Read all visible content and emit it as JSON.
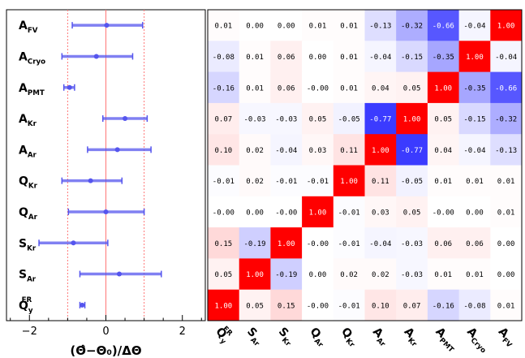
{
  "chart_data": [
    {
      "type": "scatter",
      "subtype": "pull-plot",
      "xlabel": "(Θ̂−Θ₀)/ΔΘ",
      "xlim": [
        -2.6,
        2.6
      ],
      "xticks": [
        -2,
        0,
        2
      ],
      "reference_lines": [
        {
          "x": 0,
          "style": "solid",
          "color": "#ff7777"
        },
        {
          "x": -1,
          "style": "dotted",
          "color": "#ff7777"
        },
        {
          "x": 1,
          "style": "dotted",
          "color": "#ff7777"
        }
      ],
      "marker_color": "#5555ee",
      "parameters": [
        {
          "base": "A",
          "sub": "FV",
          "sup": "",
          "center": 0.02,
          "low": -0.88,
          "high": 0.96
        },
        {
          "base": "A",
          "sub": "Cryo",
          "sup": "",
          "center": -0.25,
          "low": -1.15,
          "high": 0.7
        },
        {
          "base": "A",
          "sub": "PMT",
          "sup": "",
          "center": -0.95,
          "low": -1.1,
          "high": -0.82
        },
        {
          "base": "A",
          "sub": "Kr",
          "sup": "",
          "center": 0.5,
          "low": -0.08,
          "high": 1.08
        },
        {
          "base": "A",
          "sub": "Ar",
          "sup": "",
          "center": 0.3,
          "low": -0.48,
          "high": 1.18
        },
        {
          "base": "Q",
          "sub": "Kr",
          "sup": "",
          "center": -0.4,
          "low": -1.15,
          "high": 0.42
        },
        {
          "base": "Q",
          "sub": "Ar",
          "sup": "",
          "center": 0.0,
          "low": -0.98,
          "high": 1.0
        },
        {
          "base": "S",
          "sub": "Kr",
          "sup": "",
          "center": -0.85,
          "low": -1.75,
          "high": 0.05
        },
        {
          "base": "S",
          "sub": "Ar",
          "sup": "",
          "center": 0.35,
          "low": -0.68,
          "high": 1.45
        },
        {
          "base": "Q",
          "sub": "y",
          "sup": "ER",
          "center": -0.62,
          "low": -0.68,
          "high": -0.55
        }
      ]
    },
    {
      "type": "heatmap",
      "subtype": "correlation-matrix",
      "color_positive": "#ff0000",
      "color_negative": "#0000ff",
      "columns": [
        {
          "base": "Q",
          "sub": "y",
          "sup": "ER"
        },
        {
          "base": "S",
          "sub": "Ar",
          "sup": ""
        },
        {
          "base": "S",
          "sub": "Kr",
          "sup": ""
        },
        {
          "base": "Q",
          "sub": "Ar",
          "sup": ""
        },
        {
          "base": "Q",
          "sub": "Kr",
          "sup": ""
        },
        {
          "base": "A",
          "sub": "Ar",
          "sup": ""
        },
        {
          "base": "A",
          "sub": "Kr",
          "sup": ""
        },
        {
          "base": "A",
          "sub": "PMT",
          "sup": ""
        },
        {
          "base": "A",
          "sub": "Cryo",
          "sup": ""
        },
        {
          "base": "A",
          "sub": "FV",
          "sup": ""
        }
      ],
      "rows": [
        {
          "name": "A_FV",
          "cells": [
            "0.01",
            "0.00",
            "0.00",
            "0.01",
            "0.01",
            "-0.13",
            "-0.32",
            "-0.66",
            "-0.04",
            "1.00"
          ]
        },
        {
          "name": "A_Cryo",
          "cells": [
            "-0.08",
            "0.01",
            "0.06",
            "0.00",
            "0.01",
            "-0.04",
            "-0.15",
            "-0.35",
            "1.00",
            "-0.04"
          ]
        },
        {
          "name": "A_PMT",
          "cells": [
            "-0.16",
            "0.01",
            "0.06",
            "-0.00",
            "0.01",
            "0.04",
            "0.05",
            "1.00",
            "-0.35",
            "-0.66"
          ]
        },
        {
          "name": "A_Kr",
          "cells": [
            "0.07",
            "-0.03",
            "-0.03",
            "0.05",
            "-0.05",
            "-0.77",
            "1.00",
            "0.05",
            "-0.15",
            "-0.32"
          ]
        },
        {
          "name": "A_Ar",
          "cells": [
            "0.10",
            "0.02",
            "-0.04",
            "0.03",
            "0.11",
            "1.00",
            "-0.77",
            "0.04",
            "-0.04",
            "-0.13"
          ]
        },
        {
          "name": "Q_Kr",
          "cells": [
            "-0.01",
            "0.02",
            "-0.01",
            "-0.01",
            "1.00",
            "0.11",
            "-0.05",
            "0.01",
            "0.01",
            "0.01"
          ]
        },
        {
          "name": "Q_Ar",
          "cells": [
            "-0.00",
            "0.00",
            "-0.00",
            "1.00",
            "-0.01",
            "0.03",
            "0.05",
            "-0.00",
            "0.00",
            "0.01"
          ]
        },
        {
          "name": "S_Kr",
          "cells": [
            "0.15",
            "-0.19",
            "1.00",
            "-0.00",
            "-0.01",
            "-0.04",
            "-0.03",
            "0.06",
            "0.06",
            "0.00"
          ]
        },
        {
          "name": "S_Ar",
          "cells": [
            "0.05",
            "1.00",
            "-0.19",
            "0.00",
            "0.02",
            "0.02",
            "-0.03",
            "0.01",
            "0.01",
            "0.00"
          ]
        },
        {
          "name": "Q_y^ER",
          "cells": [
            "1.00",
            "0.05",
            "0.15",
            "-0.00",
            "-0.01",
            "0.10",
            "0.07",
            "-0.16",
            "-0.08",
            "0.01"
          ]
        }
      ]
    }
  ]
}
